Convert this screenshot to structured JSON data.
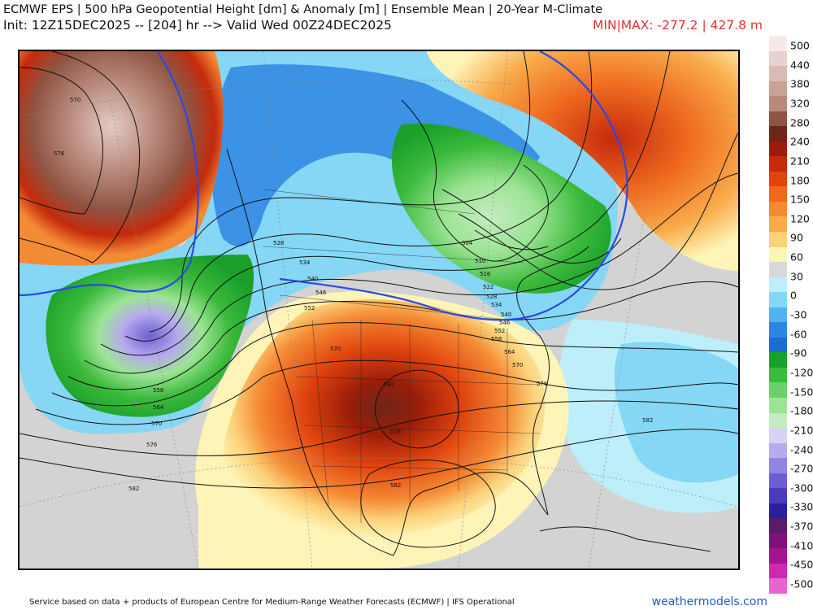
{
  "header": {
    "title_line": "ECMWF EPS | 500 hPa Geopotential Height [dm] & Anomaly [m] | Ensemble Mean | 20-Year M-Climate",
    "init_line": "Init: 12Z15DEC2025 -- [204] hr --> Valid Wed 00Z24DEC2025",
    "minmax": "MIN|MAX: -277.2 | 427.8 m"
  },
  "colorbar": {
    "labels": [
      "500",
      "440",
      "380",
      "320",
      "280",
      "240",
      "210",
      "180",
      "150",
      "120",
      "90",
      "60",
      "30",
      "0",
      "-30",
      "-60",
      "-90",
      "-120",
      "-150",
      "-180",
      "-210",
      "-240",
      "-270",
      "-300",
      "-330",
      "-370",
      "-410",
      "-450",
      "-500"
    ],
    "colors": [
      "#f7e9e7",
      "#e7d3cd",
      "#d8bbb2",
      "#c8a297",
      "#b88a7d",
      "#8f5443",
      "#6e2618",
      "#9b1d0a",
      "#c42a0c",
      "#e0440f",
      "#ef6a1f",
      "#f58a34",
      "#f9ac4c",
      "#fbd27a",
      "#fff4b8",
      "#d9d9d9",
      "#bdeefa",
      "#86d6f5",
      "#53b2ee",
      "#2f86e0",
      "#1f6cd0",
      "#1aa02a",
      "#3cba3c",
      "#6cd06a",
      "#9de495",
      "#c5ecc0",
      "#d7d3f2",
      "#b7aaee",
      "#9285e0",
      "#6c5fd2",
      "#4a3dbd",
      "#2b1f9a",
      "#5c1a6a",
      "#7d137a",
      "#a41491",
      "#cc2bb0",
      "#e666d0"
    ]
  },
  "contour_labels": [
    "570",
    "576",
    "528",
    "534",
    "540",
    "546",
    "552",
    "558",
    "564",
    "570",
    "576",
    "582",
    "582",
    "570",
    "576",
    "582",
    "504",
    "510",
    "516",
    "522",
    "528",
    "534",
    "540",
    "546",
    "552",
    "558",
    "564",
    "570",
    "576",
    "582"
  ],
  "footer": {
    "credit": "Service based on data + products of European Centre for Medium-Range Weather Forecasts (ECMWF) | IFS Operational",
    "site": "weathermodels.com"
  }
}
